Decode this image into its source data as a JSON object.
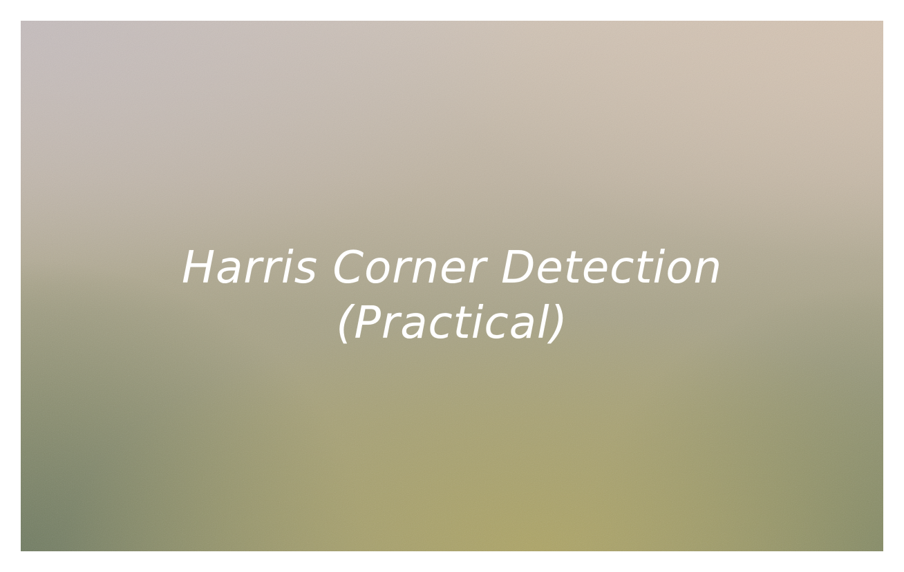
{
  "slide": {
    "title_line1": "Harris Corner Detection",
    "title_line2": "(Practical)"
  },
  "colors": {
    "page_background": "#ffffff",
    "title_text": "#ffffff",
    "backdrop_top": "#cfc3b6",
    "backdrop_bottom": "#9c9a78"
  }
}
